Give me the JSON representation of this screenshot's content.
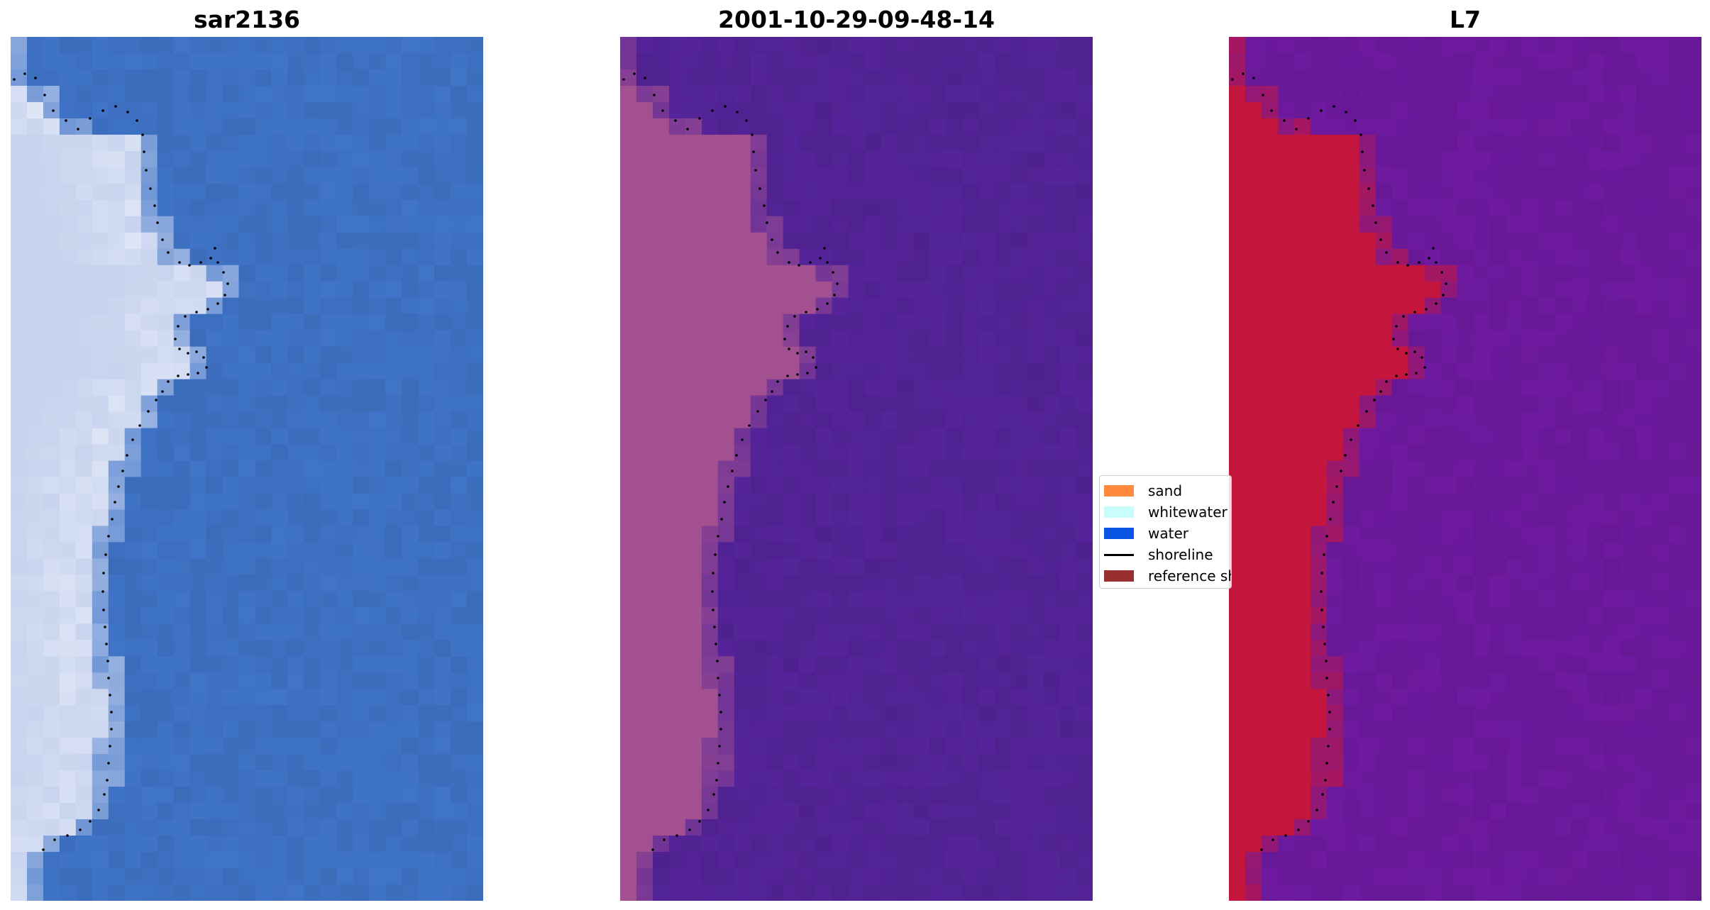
{
  "panels": [
    {
      "id": "rgb",
      "title": "sar2136"
    },
    {
      "id": "class",
      "title": "2001-10-29-09-48-14"
    },
    {
      "id": "index",
      "title": "L7"
    }
  ],
  "legend": {
    "items": [
      {
        "label": "sand",
        "color": "#ff8a3d",
        "kind": "patch"
      },
      {
        "label": "whitewater",
        "color": "#c8fdfb",
        "kind": "patch"
      },
      {
        "label": "water",
        "color": "#0a55e6",
        "kind": "patch"
      },
      {
        "label": "shoreline",
        "color": "#000000",
        "kind": "line"
      },
      {
        "label": "reference shoreline",
        "color": "#9a2f2f",
        "kind": "patch"
      }
    ]
  },
  "colors": {
    "rgb_water": "#3f74c8",
    "rgb_land": "#c8d4ee",
    "rgb_bright": "#f6f8ff",
    "class_water": "#55249a",
    "class_land": "#a2508f",
    "index_water": "#6e1aa0",
    "index_land": "#c4163c",
    "shoreline": "#000000"
  }
}
